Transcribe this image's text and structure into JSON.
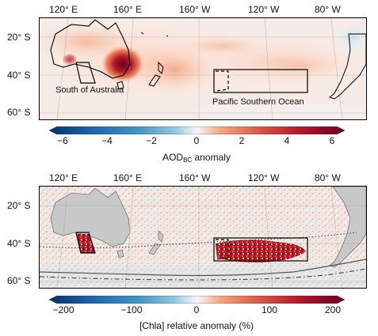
{
  "maps": {
    "top": {
      "lon_ticks": [
        "120° E",
        "160° E",
        "160° W",
        "120° W",
        "80° W"
      ],
      "lat_ticks": [
        "20° S",
        "40° S",
        "60° S"
      ],
      "region_labels": {
        "south_australia": "South of Australia",
        "pacific": "Pacific Southern Ocean"
      },
      "colorbar": {
        "ticks": [
          "−6",
          "−4",
          "−2",
          "0",
          "2",
          "4",
          "6"
        ],
        "label_main": "AOD",
        "label_sub": "BC",
        "label_rest": " anomaly",
        "range": [
          -6,
          6
        ]
      }
    },
    "bottom": {
      "lon_ticks": [
        "120° E",
        "160° E",
        "160° W",
        "120° W",
        "80° W"
      ],
      "lat_ticks": [
        "20° S",
        "40° S",
        "60° S"
      ],
      "colorbar": {
        "ticks": [
          "−200",
          "−100",
          "0",
          "100",
          "200"
        ],
        "label": "[Chla] relative anomaly (%)",
        "range": [
          -200,
          200
        ]
      }
    }
  },
  "colors": {
    "land": "#c8c8c8",
    "positive": "#b2182b",
    "negative": "#2166ac",
    "neutral": "#f7f7f7"
  }
}
